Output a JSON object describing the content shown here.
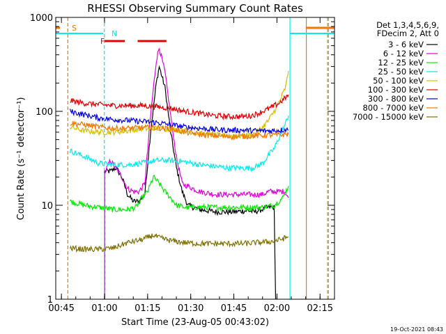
{
  "chart_data": {
    "type": "line",
    "title": "RHESSI Observing Summary Count Rates",
    "xlabel": "Start Time (23-Aug-05 00:43:02)",
    "ylabel": "Count Rate (s⁻¹ detector⁻¹)",
    "y_scale": "log",
    "xlim_minutes": [
      0,
      97
    ],
    "ylim": [
      1,
      1000
    ],
    "x_ticks": [
      {
        "minute": 1.97,
        "label": "00:45"
      },
      {
        "minute": 16.97,
        "label": "01:00"
      },
      {
        "minute": 31.97,
        "label": "01:15"
      },
      {
        "minute": 46.97,
        "label": "01:30"
      },
      {
        "minute": 61.97,
        "label": "01:45"
      },
      {
        "minute": 76.97,
        "label": "02:00"
      },
      {
        "minute": 91.97,
        "label": "02:15"
      }
    ],
    "y_ticks": [
      {
        "value": 1,
        "label": "1"
      },
      {
        "value": 10,
        "label": "10"
      },
      {
        "value": 100,
        "label": "100"
      },
      {
        "value": 1000,
        "label": "1000"
      }
    ],
    "legend_header": [
      "Det 1,3,4,5,6,9,",
      "FDecim 2, Att 0"
    ],
    "series": [
      {
        "name": "3 - 6 keV",
        "color": "#000000",
        "points": [
          [
            17,
            1.0
          ],
          [
            17,
            23
          ],
          [
            19,
            23
          ],
          [
            21,
            25
          ],
          [
            23,
            20
          ],
          [
            25,
            13
          ],
          [
            27,
            11
          ],
          [
            29,
            11
          ],
          [
            31,
            13
          ],
          [
            33,
            60
          ],
          [
            35,
            200
          ],
          [
            36,
            300
          ],
          [
            38,
            180
          ],
          [
            40,
            60
          ],
          [
            42,
            25
          ],
          [
            44,
            14
          ],
          [
            46,
            10
          ],
          [
            50,
            9
          ],
          [
            56,
            8.5
          ],
          [
            62,
            8.5
          ],
          [
            67,
            8.8
          ],
          [
            69,
            8.5
          ],
          [
            74,
            9.5
          ],
          [
            76,
            9.5
          ],
          [
            76.5,
            1.0
          ]
        ]
      },
      {
        "name": "6 - 12 keV",
        "color": "#e000e0",
        "points": [
          [
            17,
            1.0
          ],
          [
            17,
            22
          ],
          [
            19,
            30
          ],
          [
            23,
            20
          ],
          [
            25,
            15
          ],
          [
            27,
            14
          ],
          [
            29,
            14
          ],
          [
            31,
            17
          ],
          [
            33,
            90
          ],
          [
            35,
            350
          ],
          [
            36,
            480
          ],
          [
            38,
            260
          ],
          [
            40,
            90
          ],
          [
            42,
            32
          ],
          [
            44,
            17
          ],
          [
            50,
            14
          ],
          [
            56,
            13
          ],
          [
            62,
            13
          ],
          [
            68,
            13
          ],
          [
            72,
            13
          ],
          [
            74,
            14
          ],
          [
            76,
            14
          ],
          [
            77,
            14
          ],
          [
            80,
            14
          ],
          [
            81,
            12
          ]
        ]
      },
      {
        "name": "12 - 25 keV",
        "color": "#00ee00",
        "points": [
          [
            5,
            11
          ],
          [
            10,
            10
          ],
          [
            15,
            9.5
          ],
          [
            20,
            9
          ],
          [
            25,
            9
          ],
          [
            28,
            9.5
          ],
          [
            30,
            12
          ],
          [
            32,
            14
          ],
          [
            34,
            20
          ],
          [
            36,
            17
          ],
          [
            38,
            14
          ],
          [
            40,
            12
          ],
          [
            42,
            10
          ],
          [
            45,
            9.5
          ],
          [
            50,
            9.5
          ],
          [
            56,
            9.5
          ],
          [
            62,
            9.5
          ],
          [
            68,
            9.5
          ],
          [
            72,
            9.5
          ],
          [
            76,
            10
          ],
          [
            79,
            12
          ],
          [
            81,
            16
          ]
        ]
      },
      {
        "name": "25 - 50 keV",
        "color": "#00eeee",
        "points": [
          [
            5,
            38
          ],
          [
            10,
            33
          ],
          [
            15,
            28
          ],
          [
            20,
            27
          ],
          [
            25,
            27
          ],
          [
            30,
            28
          ],
          [
            35,
            30
          ],
          [
            40,
            30
          ],
          [
            45,
            29
          ],
          [
            50,
            27
          ],
          [
            55,
            26
          ],
          [
            60,
            25
          ],
          [
            65,
            25
          ],
          [
            68,
            25
          ],
          [
            70,
            26
          ],
          [
            72,
            28
          ],
          [
            74,
            34
          ],
          [
            76,
            40
          ],
          [
            78,
            55
          ],
          [
            80,
            75
          ],
          [
            81,
            90
          ]
        ]
      },
      {
        "name": "50 - 100 keV",
        "color": "#d8c000",
        "points": [
          [
            5,
            68
          ],
          [
            10,
            62
          ],
          [
            15,
            60
          ],
          [
            20,
            60
          ],
          [
            25,
            62
          ],
          [
            30,
            65
          ],
          [
            35,
            66
          ],
          [
            40,
            65
          ],
          [
            45,
            62
          ],
          [
            50,
            58
          ],
          [
            55,
            56
          ],
          [
            60,
            55
          ],
          [
            65,
            55
          ],
          [
            68,
            56
          ],
          [
            70,
            60
          ],
          [
            72,
            68
          ],
          [
            74,
            80
          ],
          [
            76,
            100
          ],
          [
            78,
            130
          ],
          [
            80,
            180
          ],
          [
            81,
            270
          ]
        ]
      },
      {
        "name": "100 - 300 keV",
        "color": "#e00000",
        "points": [
          [
            5,
            130
          ],
          [
            10,
            122
          ],
          [
            15,
            118
          ],
          [
            20,
            115
          ],
          [
            25,
            115
          ],
          [
            30,
            115
          ],
          [
            35,
            112
          ],
          [
            40,
            108
          ],
          [
            45,
            100
          ],
          [
            50,
            95
          ],
          [
            55,
            90
          ],
          [
            60,
            88
          ],
          [
            65,
            88
          ],
          [
            68,
            90
          ],
          [
            70,
            94
          ],
          [
            72,
            100
          ],
          [
            74,
            106
          ],
          [
            76,
            114
          ],
          [
            78,
            124
          ],
          [
            80,
            140
          ],
          [
            81,
            150
          ]
        ]
      },
      {
        "name": "300 - 800 keV",
        "color": "#0000e0",
        "points": [
          [
            5,
            100
          ],
          [
            10,
            92
          ],
          [
            15,
            85
          ],
          [
            20,
            82
          ],
          [
            25,
            80
          ],
          [
            30,
            78
          ],
          [
            35,
            76
          ],
          [
            40,
            72
          ],
          [
            45,
            68
          ],
          [
            50,
            66
          ],
          [
            55,
            64
          ],
          [
            60,
            63
          ],
          [
            65,
            63
          ],
          [
            70,
            62
          ],
          [
            75,
            62
          ],
          [
            78,
            63
          ],
          [
            80,
            64
          ],
          [
            81,
            63
          ]
        ]
      },
      {
        "name": "800 - 7000 keV",
        "color": "#f07800",
        "points": [
          [
            5,
            75
          ],
          [
            10,
            72
          ],
          [
            15,
            68
          ],
          [
            20,
            66
          ],
          [
            25,
            66
          ],
          [
            30,
            67
          ],
          [
            35,
            67
          ],
          [
            40,
            65
          ],
          [
            45,
            60
          ],
          [
            50,
            57
          ],
          [
            55,
            55
          ],
          [
            60,
            54
          ],
          [
            65,
            54
          ],
          [
            70,
            55
          ],
          [
            75,
            56
          ],
          [
            78,
            56
          ],
          [
            80,
            57
          ],
          [
            81,
            57
          ]
        ]
      },
      {
        "name": "7000 - 15000 keV",
        "color": "#807000",
        "points": [
          [
            5,
            3.5
          ],
          [
            10,
            3.4
          ],
          [
            15,
            3.4
          ],
          [
            20,
            3.5
          ],
          [
            25,
            4.0
          ],
          [
            30,
            4.3
          ],
          [
            34,
            4.8
          ],
          [
            36,
            4.5
          ],
          [
            40,
            4.2
          ],
          [
            45,
            4.0
          ],
          [
            50,
            3.9
          ],
          [
            55,
            3.9
          ],
          [
            60,
            3.9
          ],
          [
            65,
            3.9
          ],
          [
            70,
            4.0
          ],
          [
            75,
            4.1
          ],
          [
            78,
            4.3
          ],
          [
            80,
            4.5
          ],
          [
            81,
            4.6
          ]
        ]
      }
    ],
    "flag_bars": [
      {
        "label": "S",
        "color": "#f07800",
        "segments": [
          [
            0,
            1.5
          ],
          [
            87,
            97
          ]
        ]
      },
      {
        "label": "N",
        "color": "#00eeee",
        "segments": [
          [
            0,
            16.5
          ],
          [
            81.5,
            97
          ]
        ]
      },
      {
        "label": "F",
        "color": "#e00000",
        "segments": [
          [
            17,
            24
          ],
          [
            28.5,
            38.5
          ]
        ]
      }
    ],
    "vertical_markers": [
      {
        "minute": 4.2,
        "color": "#f07800",
        "style": "dashed"
      },
      {
        "minute": 16.9,
        "color": "#00eeee",
        "style": "dashed"
      },
      {
        "minute": 81.5,
        "color": "#00eeee",
        "style": "solid"
      },
      {
        "minute": 87.2,
        "color": "#f07800",
        "style": "solid"
      },
      {
        "minute": 94.6,
        "color": "#f07800",
        "style": "dashed"
      },
      {
        "minute": 94.9,
        "color": "#00eeee",
        "style": "dashed"
      }
    ]
  },
  "timestamp": "19-Oct-2021 08:43"
}
